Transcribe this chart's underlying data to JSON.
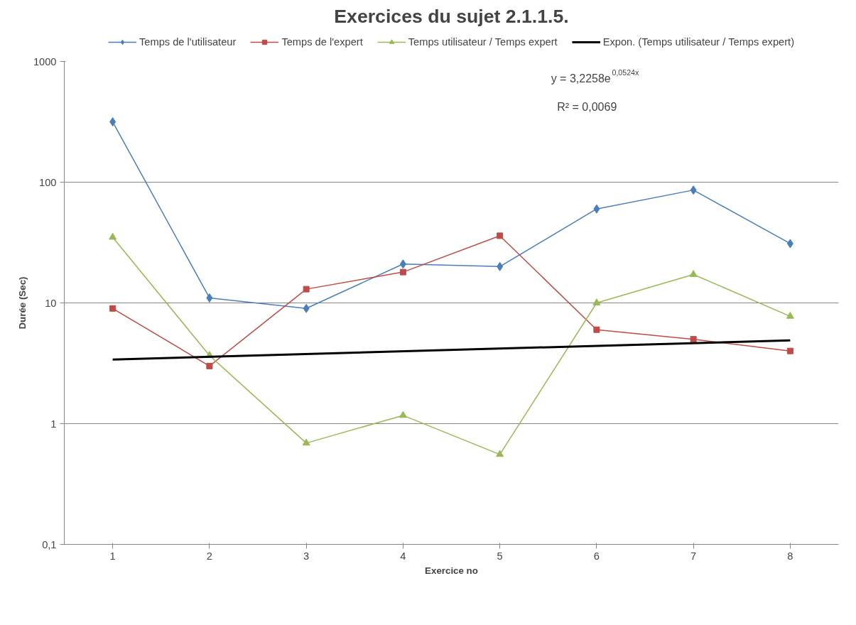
{
  "chart_data": {
    "type": "line",
    "title": "Exercices du sujet 2.1.1.5.",
    "xlabel": "Exercice no",
    "ylabel": "Durée (Sec)",
    "categories": [
      "1",
      "2",
      "3",
      "4",
      "5",
      "6",
      "7",
      "8"
    ],
    "series": [
      {
        "name": "Temps de l'utilisateur",
        "color": "#4a7ebb",
        "marker": "diamond",
        "values": [
          316,
          11,
          9,
          21,
          20,
          60,
          86,
          31
        ]
      },
      {
        "name": "Temps de l'expert",
        "color": "#be4b48",
        "marker": "square",
        "values": [
          9,
          3,
          13,
          18,
          36,
          6,
          5,
          4
        ]
      },
      {
        "name": "Temps utilisateur / Temps expert",
        "color": "#98b954",
        "marker": "triangle",
        "values": [
          35,
          3.67,
          0.69,
          1.17,
          0.556,
          10,
          17.2,
          7.75
        ]
      },
      {
        "name": "Expon. (Temps utilisateur / Temps expert)",
        "color": "#000000",
        "marker": "none",
        "x": [
          "1",
          "8"
        ],
        "values": [
          3.4,
          4.89
        ]
      }
    ],
    "log": "y",
    "ylim": [
      0.1,
      1000
    ],
    "yticks": [
      {
        "value": 0.1,
        "label": "0,1"
      },
      1,
      10,
      100,
      1000
    ],
    "grid": "y",
    "legend": "top",
    "annotations": [
      "y = 3,2258e$^{0,0524x}$",
      "R² = 0,0069"
    ]
  }
}
